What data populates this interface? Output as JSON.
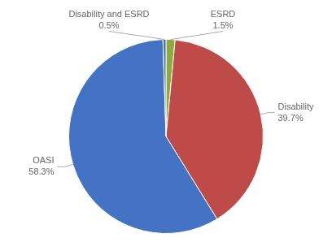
{
  "chart_data": {
    "type": "pie",
    "categories": [
      "ESRD",
      "Disability",
      "OASI",
      "Disability and ESRD"
    ],
    "values": [
      1.5,
      39.7,
      58.3,
      0.5
    ],
    "value_labels": [
      "1.5%",
      "39.7%",
      "58.3%",
      "0.5%"
    ],
    "colors": [
      "#8EAA3A",
      "#BE4B48",
      "#4472C4",
      "#4472C4"
    ],
    "data_labels": true,
    "legend": false
  }
}
